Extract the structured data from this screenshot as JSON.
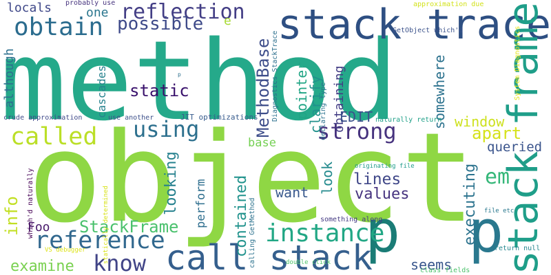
{
  "background": "#ffffff",
  "words": [
    {
      "text": "method",
      "color": "#25A98A"
    },
    {
      "text": "object",
      "color": "#8FD744"
    },
    {
      "text": "stack trace",
      "color": "#2E4F82"
    },
    {
      "text": "stack frame",
      "color": "#1F9E89"
    },
    {
      "text": "call stack",
      "color": "#355F8D"
    },
    {
      "text": "p",
      "color": "#1A7C76"
    },
    {
      "text": "p",
      "color": "#2A788E"
    },
    {
      "text": "obtain",
      "color": "#2B6C8E"
    },
    {
      "text": "reflection",
      "color": "#433E85"
    },
    {
      "text": "possible",
      "color": "#3E4A89"
    },
    {
      "text": "called",
      "color": "#BBDF27"
    },
    {
      "text": "using",
      "color": "#2D708E"
    },
    {
      "text": "strong",
      "color": "#46327E"
    },
    {
      "text": "static",
      "color": "#39116C"
    },
    {
      "text": "reference",
      "color": "#31688E"
    },
    {
      "text": "instance",
      "color": "#22A785"
    },
    {
      "text": "know",
      "color": "#414487"
    },
    {
      "text": "info",
      "color": "#C2DF23"
    },
    {
      "text": "examine",
      "color": "#7AD151"
    },
    {
      "text": "StackFrame",
      "color": "#4AC16D"
    },
    {
      "text": "MethodBase",
      "color": "#3D4D8A"
    },
    {
      "text": "looking",
      "color": "#26818E"
    },
    {
      "text": "contained",
      "color": "#20928C"
    },
    {
      "text": "pointer",
      "color": "#21A585"
    },
    {
      "text": "obtaining",
      "color": "#433D84"
    },
    {
      "text": "clarify",
      "color": "#21918C"
    },
    {
      "text": "somewhere",
      "color": "#2C728E"
    },
    {
      "text": "EDIT",
      "color": "#3B518B"
    },
    {
      "text": "window",
      "color": "#CDE11D"
    },
    {
      "text": "apart",
      "color": "#D5E21A"
    },
    {
      "text": "queried",
      "color": "#3A548C"
    },
    {
      "text": "em",
      "color": "#35B779"
    },
    {
      "text": "executing",
      "color": "#2C738E"
    },
    {
      "text": "lines",
      "color": "#3F4788"
    },
    {
      "text": "values",
      "color": "#46337F"
    },
    {
      "text": "look",
      "color": "#238A8D"
    },
    {
      "text": "want",
      "color": "#38588C"
    },
    {
      "text": "base",
      "color": "#75D054"
    },
    {
      "text": "cascades",
      "color": "#26828E"
    },
    {
      "text": "although",
      "color": "#2D708E"
    },
    {
      "text": "locals",
      "color": "#3F4889"
    },
    {
      "text": "one",
      "color": "#2A768E"
    },
    {
      "text": "e",
      "color": "#A8DB34"
    },
    {
      "text": "Foo",
      "color": "#48196B"
    },
    {
      "text": "perform",
      "color": "#2E6E8E"
    },
    {
      "text": "seems",
      "color": "#39568C"
    },
    {
      "text": "probably use",
      "color": "#46337E"
    },
    {
      "text": "approximation due",
      "color": "#D2E21B"
    },
    {
      "text": "GetObject which'd",
      "color": "#3B528B"
    },
    {
      "text": "System Diagnostics",
      "color": "#E5E419"
    },
    {
      "text": "Diagnostics StackTrace",
      "color": "#2D708E"
    },
    {
      "text": "declaring type",
      "color": "#2C728E"
    },
    {
      "text": "JIT optimizations",
      "color": "#375B8D"
    },
    {
      "text": "crude approximation",
      "color": "#3E4989"
    },
    {
      "text": "use another",
      "color": "#3C4F8A"
    },
    {
      "text": "naturally return",
      "color": "#1FA088"
    },
    {
      "text": "originating file",
      "color": "#1E9B8A"
    },
    {
      "text": "file etc",
      "color": "#2A788E"
    },
    {
      "text": "return null",
      "color": "#24868E"
    },
    {
      "text": "class fields",
      "color": "#4CC26C"
    },
    {
      "text": "double click",
      "color": "#50C46A"
    },
    {
      "text": "something along",
      "color": "#443A83"
    },
    {
      "text": "calling GetMethod",
      "color": "#2C728E"
    },
    {
      "text": "which'd naturally",
      "color": "#440154"
    },
    {
      "text": "statically determined",
      "color": "#D8E219"
    },
    {
      "text": "VS debugger",
      "color": "#DDE318"
    },
    {
      "text": "p",
      "color": "#2D708E"
    }
  ]
}
